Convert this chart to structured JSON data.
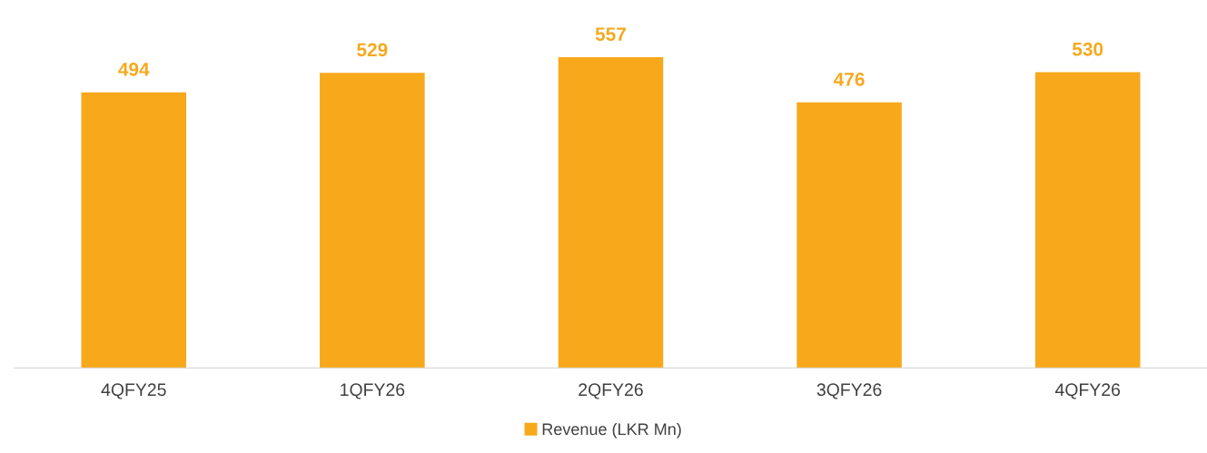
{
  "chart_data": {
    "type": "bar",
    "categories": [
      "4QFY25",
      "1QFY26",
      "2QFY26",
      "3QFY26",
      "4QFY26"
    ],
    "series": [
      {
        "name": "Revenue (LKR Mn)",
        "color": "#f7a81b",
        "values": [
          494,
          529,
          557,
          476,
          530
        ]
      }
    ],
    "data_labels": true,
    "tick_labels": "x",
    "legend": "bottom",
    "grid": false
  }
}
